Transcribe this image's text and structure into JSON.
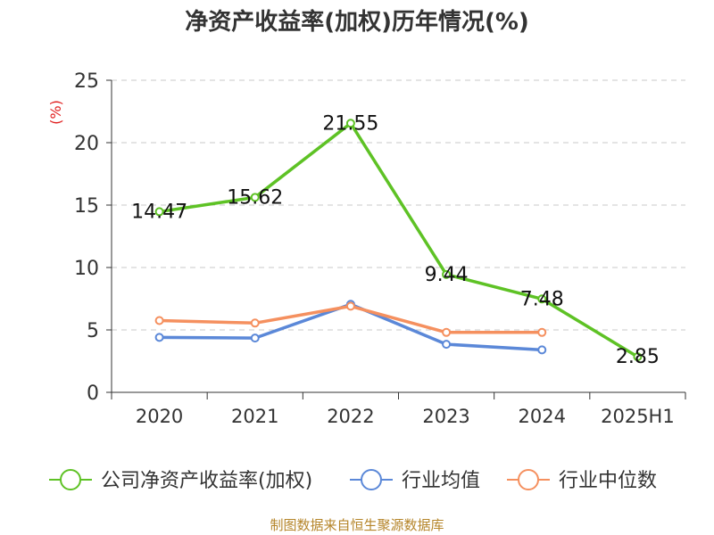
{
  "chart_data": {
    "type": "line",
    "title": "净资产收益率(加权)历年情况(%)",
    "ylabel": "(%)",
    "xlabel": "",
    "categories": [
      "2020",
      "2021",
      "2022",
      "2023",
      "2024",
      "2025H1"
    ],
    "ylim": [
      0,
      25
    ],
    "yticks": [
      0,
      5,
      10,
      15,
      20,
      25
    ],
    "grid": true,
    "legend_position": "bottom",
    "series": [
      {
        "name": "公司净资产收益率(加权)",
        "color": "#5ec225",
        "values": [
          14.47,
          15.62,
          21.55,
          9.44,
          7.48,
          2.85
        ],
        "labels": [
          "14.47",
          "15.62",
          "21.55",
          "9.44",
          "7.48",
          "2.85"
        ]
      },
      {
        "name": "行业均值",
        "color": "#5b88d8",
        "values": [
          4.4,
          4.35,
          7.05,
          3.85,
          3.4,
          null
        ]
      },
      {
        "name": "行业中位数",
        "color": "#f5905f",
        "values": [
          5.75,
          5.55,
          6.9,
          4.8,
          4.8,
          null
        ]
      }
    ]
  },
  "footer": {
    "source": "制图数据来自恒生聚源数据库"
  }
}
